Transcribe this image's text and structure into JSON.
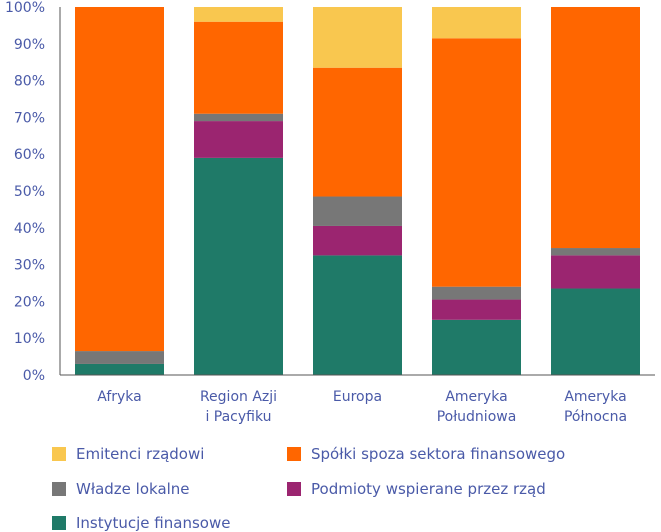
{
  "chart_data": {
    "type": "bar",
    "stacked": true,
    "categories": [
      [
        "Afryka"
      ],
      [
        "Region Azji",
        "i Pacyfiku"
      ],
      [
        "Europa"
      ],
      [
        "Ameryka",
        "Południowa"
      ],
      [
        "Ameryka",
        "Północna"
      ]
    ],
    "series": [
      {
        "name": "Instytucje finansowe",
        "color": "#1f7a68",
        "values": [
          3,
          59,
          32.5,
          15,
          23.5
        ]
      },
      {
        "name": "Podmioty wspierane przez rząd",
        "color": "#9b2570",
        "values": [
          0,
          10,
          8,
          5.5,
          9
        ]
      },
      {
        "name": "Władze lokalne",
        "color": "#777777",
        "values": [
          3.5,
          2,
          8,
          3.5,
          2
        ]
      },
      {
        "name": "Spółki spoza sektora finansowego",
        "color": "#ff6600",
        "values": [
          93.5,
          25,
          35,
          67.5,
          65.5
        ]
      },
      {
        "name": "Emitenci rządowi",
        "color": "#f9c74f",
        "values": [
          0,
          4,
          16.5,
          8.5,
          0
        ]
      }
    ],
    "ylim": [
      0,
      100
    ],
    "yticks": [
      "0%",
      "10%",
      "20%",
      "30%",
      "40%",
      "50%",
      "60%",
      "70%",
      "80%",
      "90%",
      "100%"
    ],
    "grid": false,
    "legend": [
      {
        "label": "Emitenci rządowi",
        "color": "#f9c74f"
      },
      {
        "label": "Spółki spoza sektora finansowego",
        "color": "#ff6600"
      },
      {
        "label": "Władze lokalne",
        "color": "#777777"
      },
      {
        "label": "Podmioty wspierane przez rząd",
        "color": "#9b2570"
      },
      {
        "label": "Instytucje finansowe",
        "color": "#1f7a68"
      }
    ]
  }
}
